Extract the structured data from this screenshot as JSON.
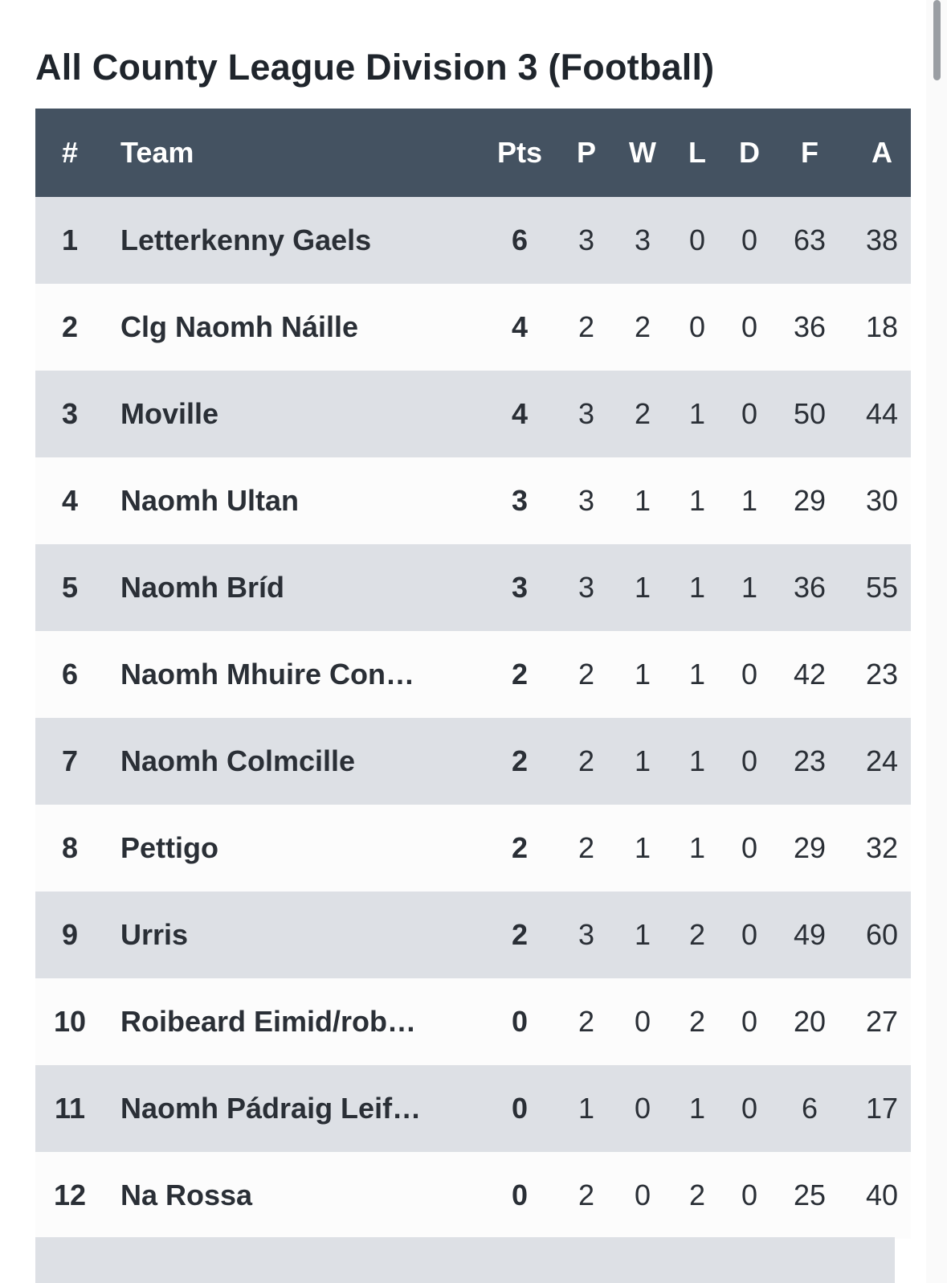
{
  "page": {
    "title": "All County League Division 3 (Football)"
  },
  "table": {
    "headers": {
      "pos": "#",
      "team": "Team",
      "pts": "Pts",
      "p": "P",
      "w": "W",
      "l": "L",
      "d": "D",
      "f": "F",
      "a": "A"
    },
    "rows": [
      {
        "pos": "1",
        "team": "Letterkenny Gaels",
        "pts": "6",
        "p": "3",
        "w": "3",
        "l": "0",
        "d": "0",
        "f": "63",
        "a": "38"
      },
      {
        "pos": "2",
        "team": "Clg Naomh Náille",
        "pts": "4",
        "p": "2",
        "w": "2",
        "l": "0",
        "d": "0",
        "f": "36",
        "a": "18"
      },
      {
        "pos": "3",
        "team": "Moville",
        "pts": "4",
        "p": "3",
        "w": "2",
        "l": "1",
        "d": "0",
        "f": "50",
        "a": "44"
      },
      {
        "pos": "4",
        "team": "Naomh Ultan",
        "pts": "3",
        "p": "3",
        "w": "1",
        "l": "1",
        "d": "1",
        "f": "29",
        "a": "30"
      },
      {
        "pos": "5",
        "team": "Naomh Bríd",
        "pts": "3",
        "p": "3",
        "w": "1",
        "l": "1",
        "d": "1",
        "f": "36",
        "a": "55"
      },
      {
        "pos": "6",
        "team": "Naomh Mhuire Con…",
        "pts": "2",
        "p": "2",
        "w": "1",
        "l": "1",
        "d": "0",
        "f": "42",
        "a": "23"
      },
      {
        "pos": "7",
        "team": "Naomh Colmcille",
        "pts": "2",
        "p": "2",
        "w": "1",
        "l": "1",
        "d": "0",
        "f": "23",
        "a": "24"
      },
      {
        "pos": "8",
        "team": "Pettigo",
        "pts": "2",
        "p": "2",
        "w": "1",
        "l": "1",
        "d": "0",
        "f": "29",
        "a": "32"
      },
      {
        "pos": "9",
        "team": "Urris",
        "pts": "2",
        "p": "3",
        "w": "1",
        "l": "2",
        "d": "0",
        "f": "49",
        "a": "60"
      },
      {
        "pos": "10",
        "team": "Roibeard Eimid/rob…",
        "pts": "0",
        "p": "2",
        "w": "0",
        "l": "2",
        "d": "0",
        "f": "20",
        "a": "27"
      },
      {
        "pos": "11",
        "team": "Naomh Pádraig Leif…",
        "pts": "0",
        "p": "1",
        "w": "0",
        "l": "1",
        "d": "0",
        "f": "6",
        "a": "17"
      },
      {
        "pos": "12",
        "team": "Na Rossa",
        "pts": "0",
        "p": "2",
        "w": "0",
        "l": "2",
        "d": "0",
        "f": "25",
        "a": "40"
      }
    ]
  },
  "colors": {
    "header_bg": "#445261",
    "row_odd": "#dde0e5",
    "row_even": "#fcfcfc",
    "text": "#2a2f36"
  }
}
